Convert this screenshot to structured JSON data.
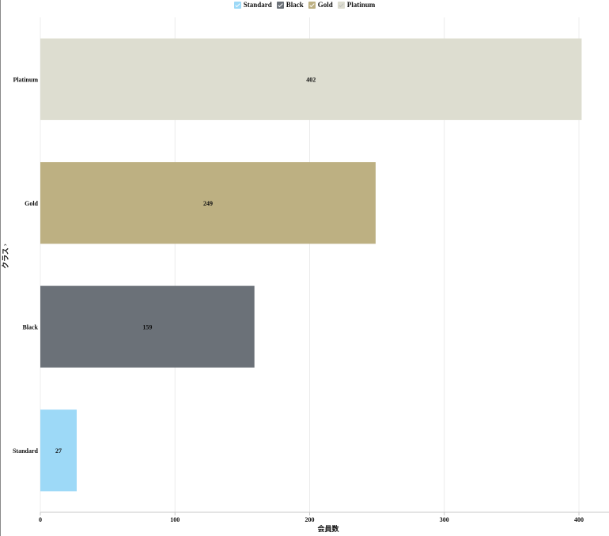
{
  "legend": {
    "items": [
      {
        "label": "Standard",
        "color": "#9dd9f7"
      },
      {
        "label": "Black",
        "color": "#6b7178"
      },
      {
        "label": "Gold",
        "color": "#bdb082"
      },
      {
        "label": "Platinum",
        "color": "#ddddd0"
      }
    ]
  },
  "axes": {
    "y_title": "クラス",
    "x_title": "会員数"
  },
  "chart_data": {
    "type": "bar",
    "orientation": "horizontal",
    "categories": [
      "Platinum",
      "Gold",
      "Black",
      "Standard"
    ],
    "values": [
      402,
      249,
      159,
      27
    ],
    "colors": [
      "#ddddd0",
      "#bdb082",
      "#6b7178",
      "#9dd9f7"
    ],
    "data_labels": [
      "402",
      "249",
      "159",
      "27"
    ],
    "xlabel": "会員数",
    "ylabel": "クラス",
    "xlim": [
      0,
      420
    ],
    "x_ticks": [
      0,
      100,
      200,
      300,
      400
    ],
    "grid": true,
    "legend_position": "top-center"
  }
}
